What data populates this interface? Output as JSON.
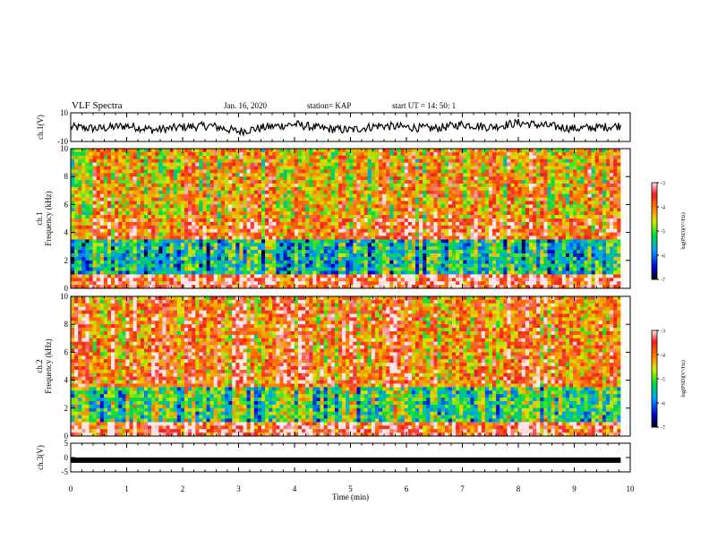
{
  "header": {
    "title": "VLF Spectra",
    "date": "Jan. 16, 2020",
    "station": "station= KAP",
    "start": "start UT =   14: 50: 1"
  },
  "chart_data": [
    {
      "type": "line",
      "panel": "ch1-waveform",
      "ylabel": "ch.1(V)",
      "ylim": [
        -10,
        10
      ],
      "yticks": [
        "10",
        "-10"
      ],
      "xlim": [
        0,
        10
      ],
      "x": [
        0,
        0.5,
        1,
        1.5,
        2,
        2.5,
        3,
        3.5,
        4,
        4.5,
        5,
        5.5,
        6,
        6.5,
        7,
        7.5,
        8,
        8.5,
        9,
        9.5,
        9.83
      ],
      "y": [
        0,
        -1,
        1,
        -2,
        0,
        1,
        -3,
        0,
        2,
        -1,
        -2,
        1,
        0,
        -1,
        2,
        0,
        3,
        1,
        -1,
        0,
        1
      ]
    },
    {
      "type": "heatmap",
      "panel": "ch1-spectrogram",
      "ylabel": "ch.1 Frequency (kHz)",
      "ylim": [
        0,
        10
      ],
      "yticks": [
        "0",
        "2",
        "4",
        "6",
        "8",
        "10"
      ],
      "xlim": [
        0,
        9.83
      ],
      "colorbar": {
        "label": "log(PSD)(V²/Hz)",
        "range": [
          -7,
          -3
        ],
        "ticks": [
          "-3",
          "-4",
          "-5",
          "-6",
          "-7"
        ]
      }
    },
    {
      "type": "heatmap",
      "panel": "ch2-spectrogram",
      "ylabel": "ch.2 Frequency (kHz)",
      "ylim": [
        0,
        10
      ],
      "yticks": [
        "0",
        "2",
        "4",
        "6",
        "8",
        "10"
      ],
      "xlim": [
        0,
        9.83
      ],
      "colorbar": {
        "label": "log(PSD)(V²/Hz)",
        "range": [
          -7,
          -3
        ],
        "ticks": [
          "-3",
          "-4",
          "-5",
          "-6",
          "-7"
        ]
      }
    },
    {
      "type": "line",
      "panel": "ch3-waveform",
      "ylabel": "ch.3(V)",
      "ylim": [
        -5,
        5
      ],
      "yticks": [
        "5",
        "0",
        "-5"
      ],
      "xlim": [
        0,
        10
      ],
      "xlabel": "Time (min)",
      "xticks": [
        "0",
        "1",
        "2",
        "3",
        "4",
        "5",
        "6",
        "7",
        "8",
        "9",
        "10"
      ],
      "x": [
        0,
        9.83
      ],
      "y": [
        -0.9,
        -0.9
      ]
    }
  ]
}
